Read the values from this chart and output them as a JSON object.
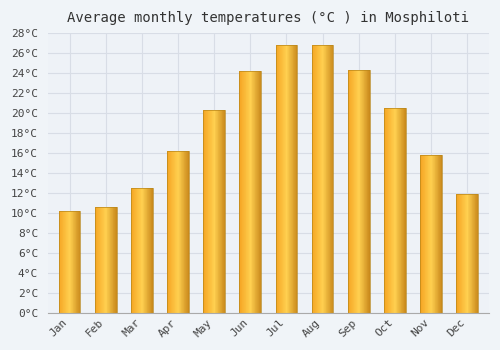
{
  "title": "Average monthly temperatures (°C ) in Mosphiloti",
  "months": [
    "Jan",
    "Feb",
    "Mar",
    "Apr",
    "May",
    "Jun",
    "Jul",
    "Aug",
    "Sep",
    "Oct",
    "Nov",
    "Dec"
  ],
  "values": [
    10.2,
    10.6,
    12.5,
    16.2,
    20.3,
    24.2,
    26.8,
    26.8,
    24.3,
    20.5,
    15.8,
    11.9
  ],
  "bar_color_left": "#F5A623",
  "bar_color_center": "#FFD050",
  "bar_color_right": "#C8871A",
  "ylim": [
    0,
    28
  ],
  "ytick_step": 2,
  "background_color": "#f0f4f8",
  "plot_bg_color": "#eef2f7",
  "grid_color": "#d8dde6",
  "title_fontsize": 10,
  "tick_fontsize": 8,
  "font_family": "monospace"
}
